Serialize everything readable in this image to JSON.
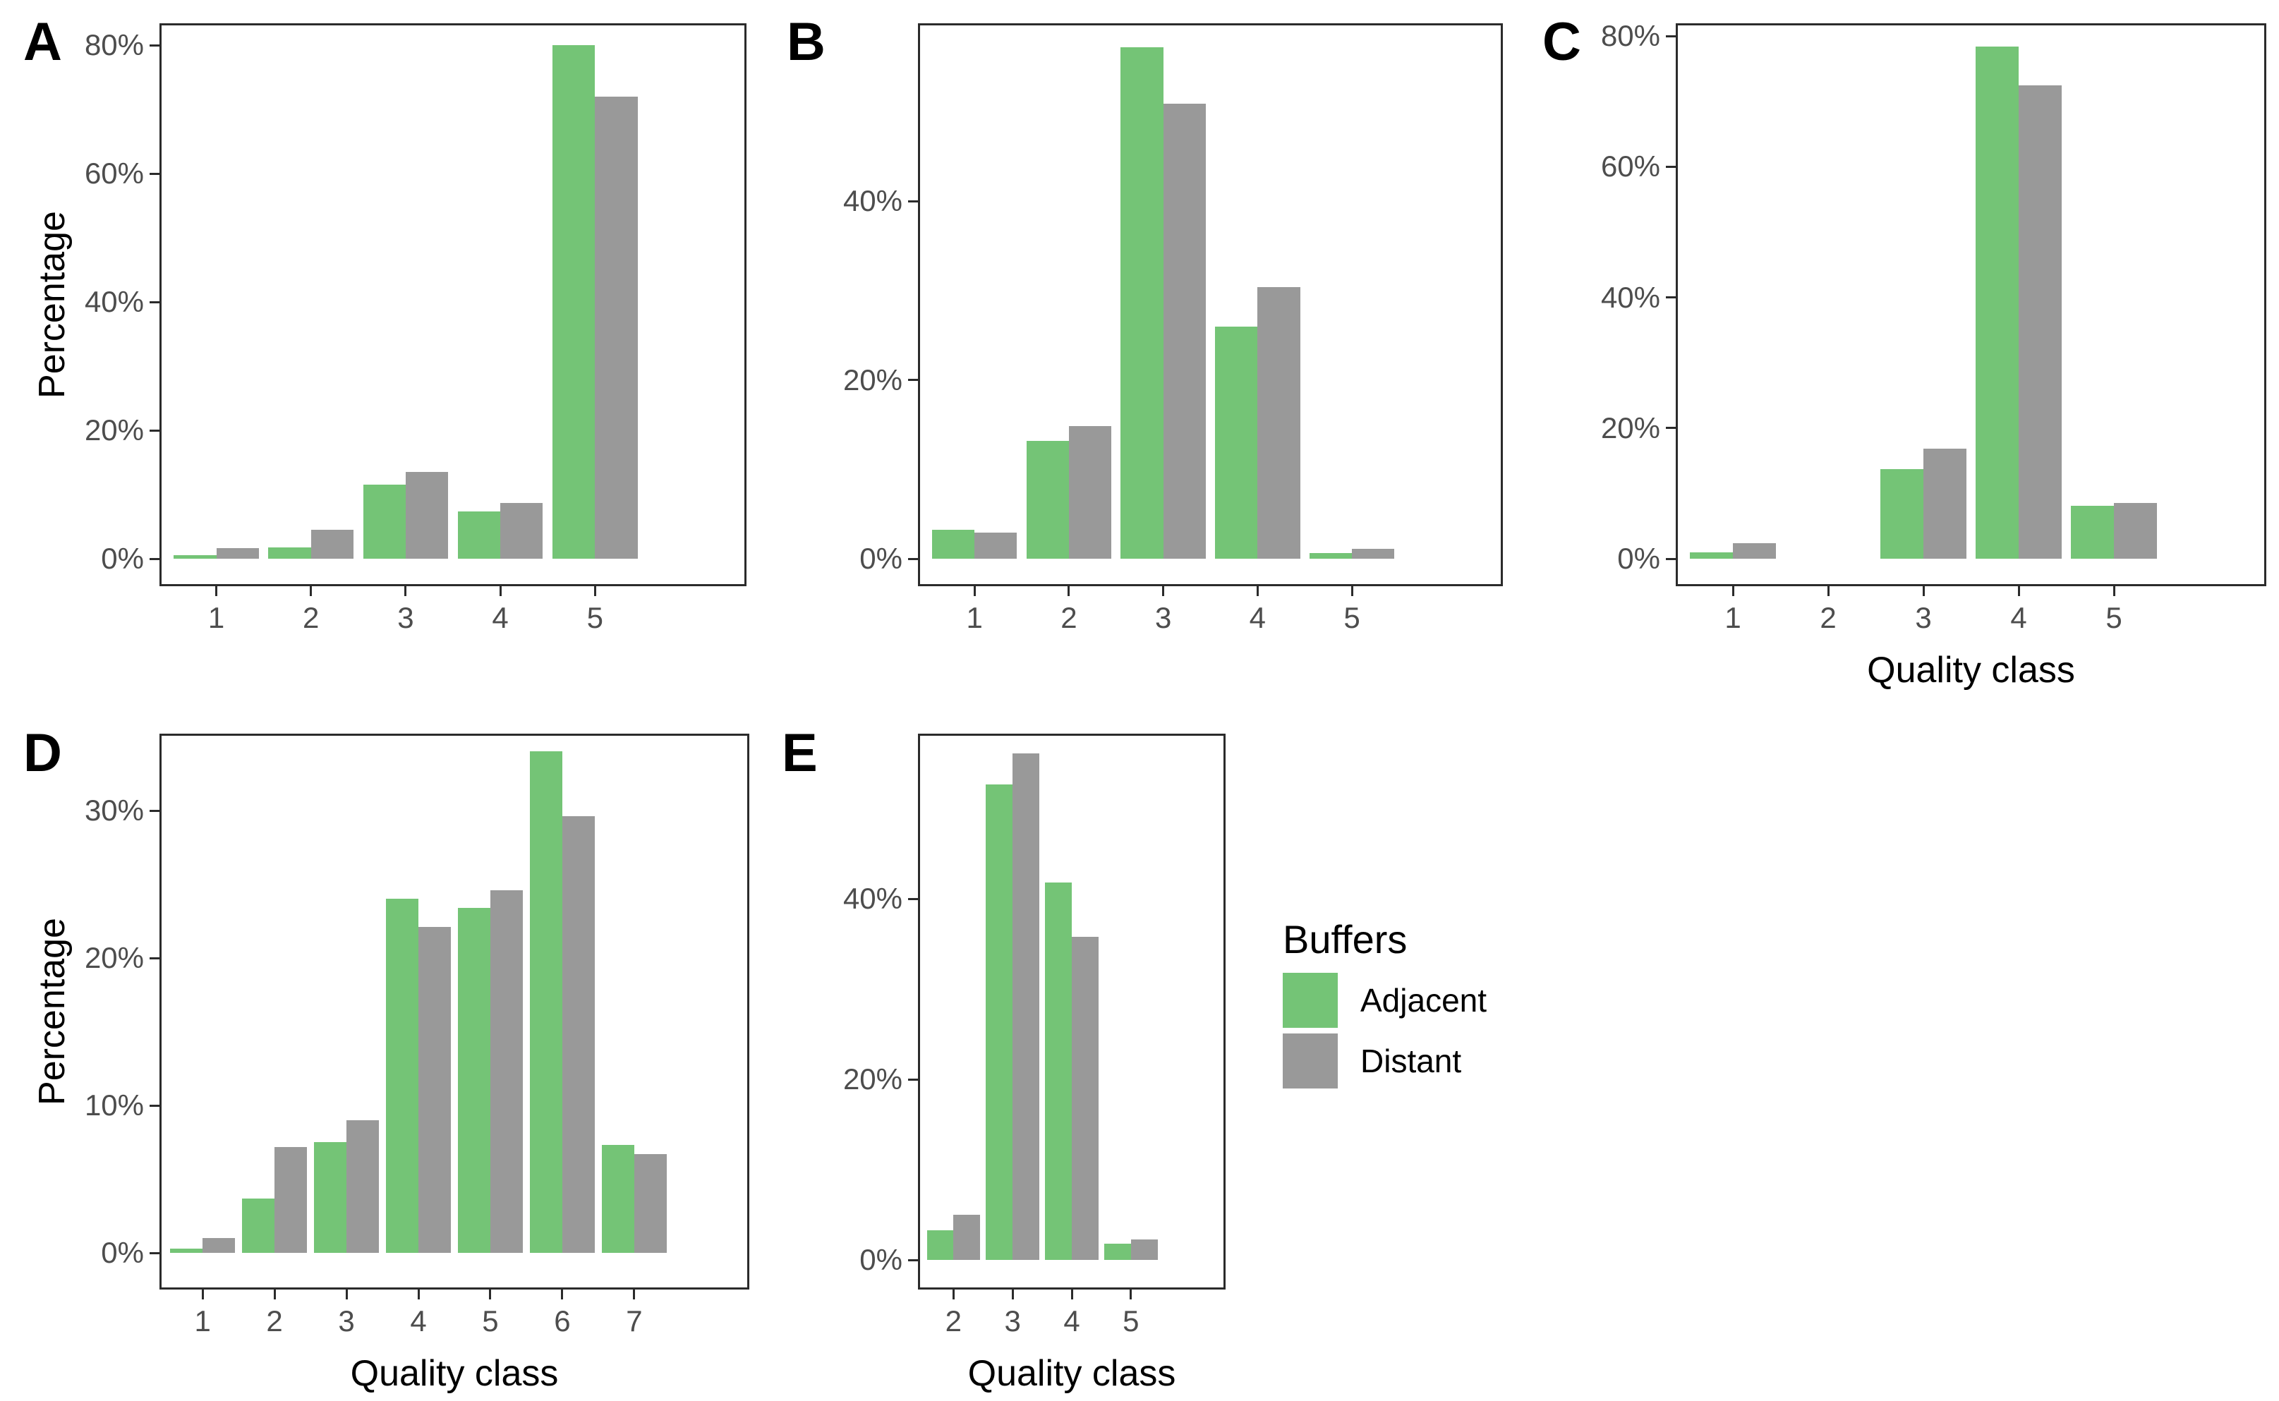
{
  "figure": {
    "description": "Five-panel grouped bar chart figure comparing percentage distributions of quality classes for Adjacent vs Distant buffers",
    "background": "#ffffff"
  },
  "colors": {
    "adjacent": "#74c476",
    "distant": "#999999",
    "axis_line": "#2b2b2b",
    "tick_text": "#4d4d4d",
    "title_text": "#000000"
  },
  "legend": {
    "title": "Buffers",
    "items": [
      {
        "label": "Adjacent",
        "color_key": "adjacent"
      },
      {
        "label": "Distant",
        "color_key": "distant"
      }
    ]
  },
  "chart_data": [
    {
      "panel": "A",
      "type": "bar",
      "categories": [
        "1",
        "2",
        "3",
        "4",
        "5"
      ],
      "series": [
        {
          "name": "Adjacent",
          "values": [
            0.5,
            1.8,
            11.5,
            7.4,
            80.0
          ]
        },
        {
          "name": "Distant",
          "values": [
            1.7,
            4.5,
            13.5,
            8.7,
            72.0
          ]
        }
      ],
      "xlabel": "",
      "ylabel": "Percentage",
      "ylim": [
        0,
        84
      ],
      "grid": false,
      "yticks": [
        {
          "value": 0,
          "label": "0%"
        },
        {
          "value": 20,
          "label": "20%"
        },
        {
          "value": 40,
          "label": "40%"
        },
        {
          "value": 60,
          "label": "60%"
        },
        {
          "value": 80,
          "label": "80%"
        }
      ]
    },
    {
      "panel": "B",
      "type": "bar",
      "categories": [
        "1",
        "2",
        "3",
        "4",
        "5"
      ],
      "series": [
        {
          "name": "Adjacent",
          "values": [
            3.2,
            13.2,
            57.2,
            26.0,
            0.6
          ]
        },
        {
          "name": "Distant",
          "values": [
            2.9,
            14.8,
            50.9,
            30.4,
            1.1
          ]
        }
      ],
      "xlabel": "",
      "ylabel": "",
      "ylim": [
        0,
        60
      ],
      "grid": false,
      "yticks": [
        {
          "value": 0,
          "label": "0%"
        },
        {
          "value": 20,
          "label": "20%"
        },
        {
          "value": 40,
          "label": "40%"
        }
      ]
    },
    {
      "panel": "C",
      "type": "bar",
      "categories": [
        "1",
        "2",
        "3",
        "4",
        "5"
      ],
      "series": [
        {
          "name": "Adjacent",
          "values": [
            1.0,
            0,
            13.7,
            78.4,
            8.1
          ]
        },
        {
          "name": "Distant",
          "values": [
            2.4,
            0,
            16.9,
            72.5,
            8.5
          ]
        }
      ],
      "xlabel": "Quality class",
      "ylabel": "",
      "ylim": [
        0,
        84
      ],
      "grid": false,
      "yticks": [
        {
          "value": 0,
          "label": "0%"
        },
        {
          "value": 20,
          "label": "20%"
        },
        {
          "value": 40,
          "label": "40%"
        },
        {
          "value": 60,
          "label": "60%"
        },
        {
          "value": 80,
          "label": "80%"
        }
      ]
    },
    {
      "panel": "D",
      "type": "bar",
      "categories": [
        "1",
        "2",
        "3",
        "4",
        "5",
        "6",
        "7"
      ],
      "series": [
        {
          "name": "Adjacent",
          "values": [
            0.3,
            3.7,
            7.5,
            24.0,
            23.4,
            34.0,
            7.3
          ]
        },
        {
          "name": "Distant",
          "values": [
            1.0,
            7.2,
            9.0,
            22.1,
            24.6,
            29.6,
            6.7
          ]
        }
      ],
      "xlabel": "Quality class",
      "ylabel": "Percentage",
      "ylim": [
        0,
        36
      ],
      "grid": false,
      "yticks": [
        {
          "value": 0,
          "label": "0%"
        },
        {
          "value": 10,
          "label": "10%"
        },
        {
          "value": 20,
          "label": "20%"
        },
        {
          "value": 30,
          "label": "30%"
        }
      ]
    },
    {
      "panel": "E",
      "type": "bar",
      "categories": [
        "2",
        "3",
        "4",
        "5"
      ],
      "series": [
        {
          "name": "Adjacent",
          "values": [
            3.3,
            52.7,
            41.8,
            1.8
          ]
        },
        {
          "name": "Distant",
          "values": [
            5.0,
            56.1,
            35.8,
            2.3
          ]
        }
      ],
      "xlabel": "Quality class",
      "ylabel": "",
      "ylim": [
        0,
        59
      ],
      "grid": false,
      "yticks": [
        {
          "value": 0,
          "label": "0%"
        },
        {
          "value": 20,
          "label": "20%"
        },
        {
          "value": 40,
          "label": "40%"
        }
      ]
    }
  ]
}
